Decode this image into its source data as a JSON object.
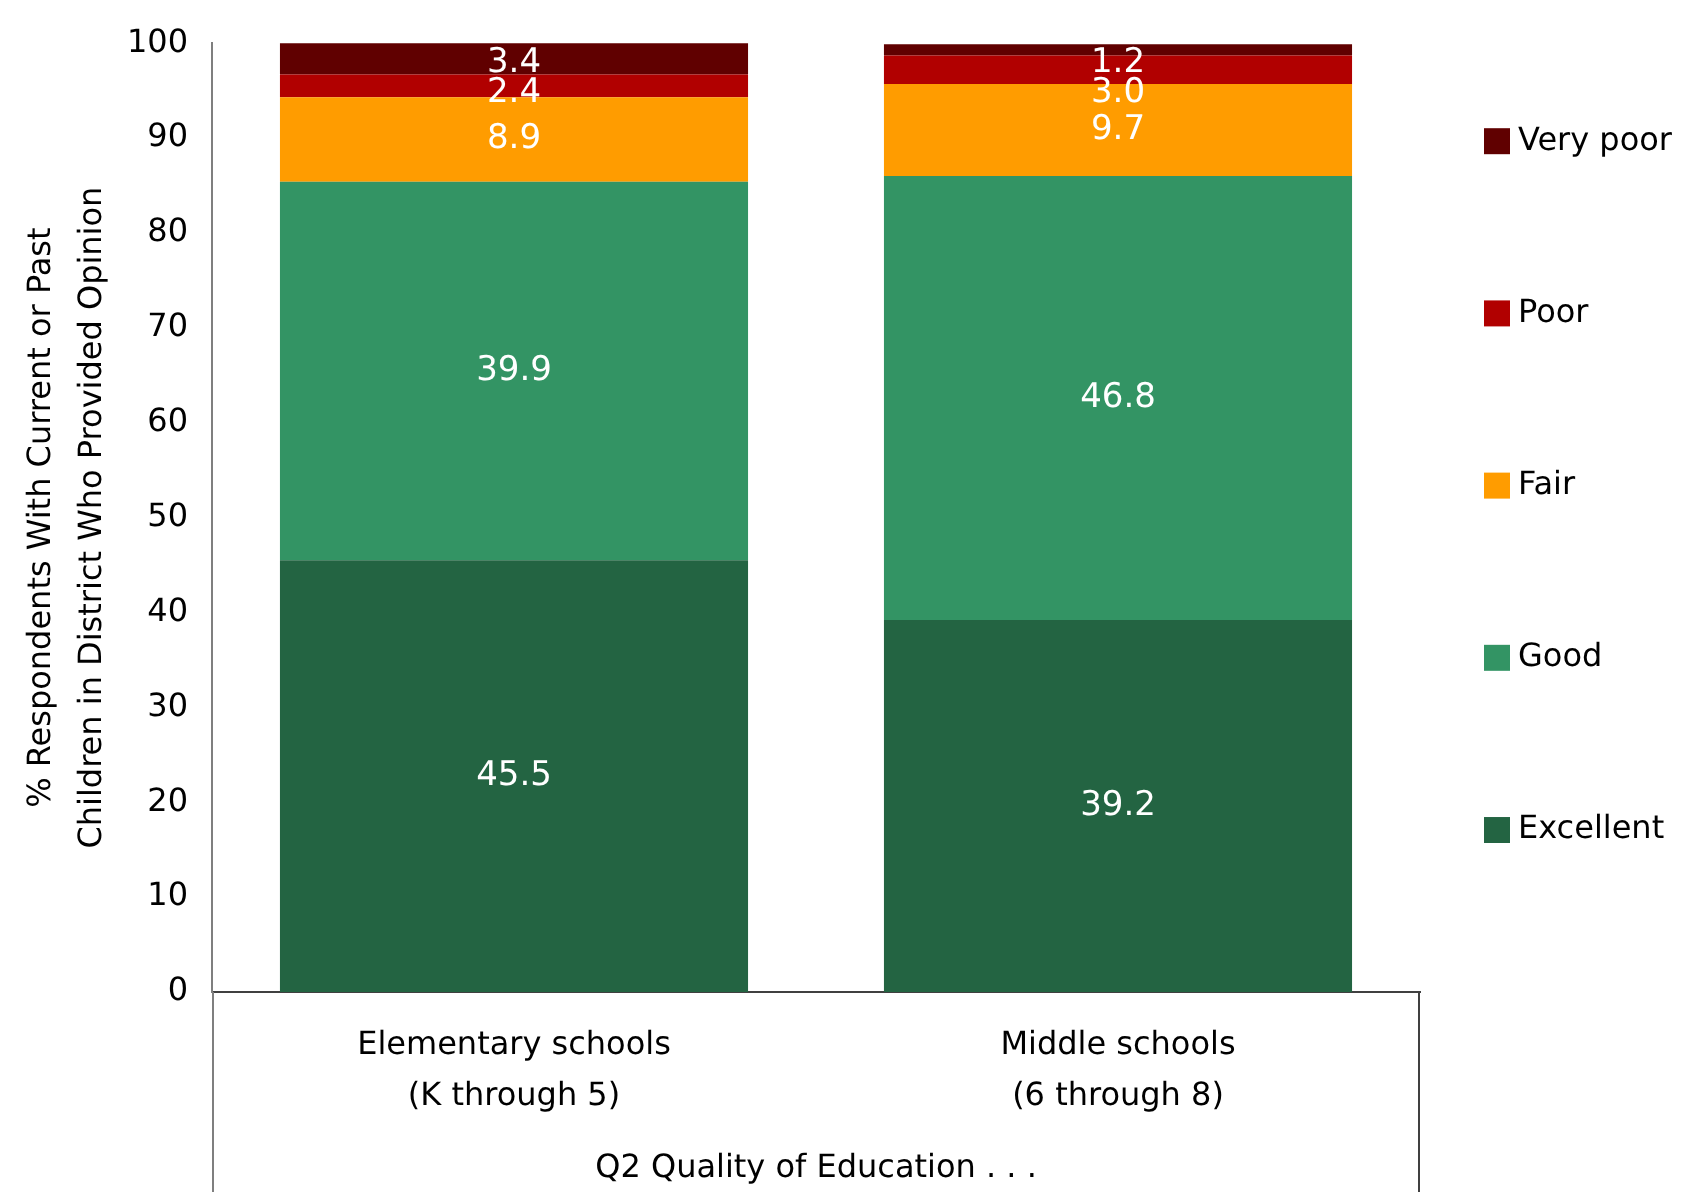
{
  "chart_data": {
    "type": "bar",
    "stacked": true,
    "ylabel": "% Respondents With Current or Past\nChildren in District Who Provided Opinion",
    "xlabel": "Q2 Quality of Education . . .",
    "categories": [
      "Elementary schools\n(K through 5)",
      "Middle schools\n(6 through 8)"
    ],
    "ylim": [
      0,
      100
    ],
    "yticks": [
      0,
      10,
      20,
      30,
      40,
      50,
      60,
      70,
      80,
      90,
      100
    ],
    "grid": false,
    "legend": "right",
    "series": [
      {
        "name": "Excellent",
        "color": "#236442",
        "values": [
          45.5,
          39.2
        ],
        "value_labels": [
          "45.5",
          "39.2"
        ]
      },
      {
        "name": "Good",
        "color": "#339464",
        "values": [
          39.9,
          46.8
        ],
        "value_labels": [
          "39.9",
          "46.8"
        ]
      },
      {
        "name": "Fair",
        "color": "#ff9c00",
        "values": [
          8.9,
          9.7
        ],
        "value_labels": [
          "8.9",
          "9.7"
        ]
      },
      {
        "name": "Poor",
        "color": "#b10000",
        "values": [
          2.4,
          3.0
        ],
        "value_labels": [
          "2.4",
          "3.0"
        ]
      },
      {
        "name": "Very poor",
        "color": "#600000",
        "values": [
          3.4,
          1.2
        ],
        "value_labels": [
          "3.4",
          "1.2"
        ]
      }
    ]
  }
}
